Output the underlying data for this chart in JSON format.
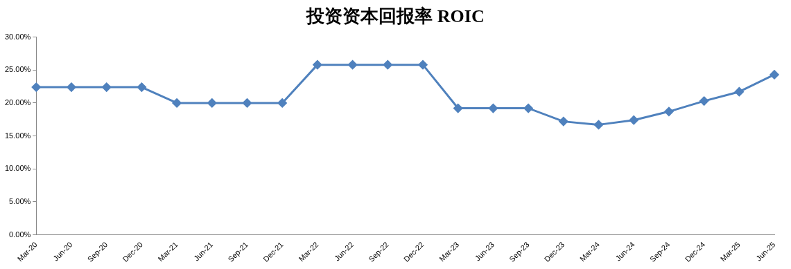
{
  "chart_data": {
    "type": "line",
    "title": "投资资本回报率 ROIC",
    "categories": [
      "Mar-20",
      "Jun-20",
      "Sep-20",
      "Dec-20",
      "Mar-21",
      "Jun-21",
      "Sep-21",
      "Dec-21",
      "Mar-22",
      "Jun-22",
      "Sep-22",
      "Dec-22",
      "Mar-23",
      "Jun-23",
      "Sep-23",
      "Dec-23",
      "Mar-24",
      "Jun-24",
      "Sep-24",
      "Dec-24",
      "Mar-25",
      "Jun-25"
    ],
    "series": [
      {
        "color": "#4f81bd",
        "values": [
          22.4,
          22.4,
          22.4,
          22.4,
          20.0,
          20.0,
          20.0,
          20.0,
          25.8,
          25.8,
          25.8,
          25.8,
          19.2,
          19.2,
          19.2,
          17.2,
          16.7,
          17.4,
          18.7,
          20.3,
          21.7,
          24.3
        ]
      }
    ],
    "ylim": [
      0,
      30
    ],
    "yticks": [
      {
        "value": 0,
        "label": "0.00%"
      },
      {
        "value": 5,
        "label": "5.00%"
      },
      {
        "value": 10,
        "label": "10.00%"
      },
      {
        "value": 15,
        "label": "15.00%"
      },
      {
        "value": 20,
        "label": "20.00%"
      },
      {
        "value": 25,
        "label": "25.00%"
      },
      {
        "value": 30,
        "label": "30.00%"
      }
    ],
    "grid": false,
    "legend": false,
    "marker": "diamond",
    "line_style": "solid"
  }
}
